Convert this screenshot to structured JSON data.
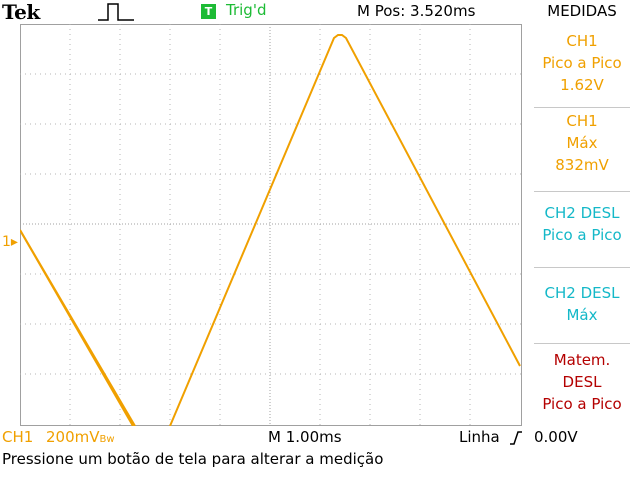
{
  "header": {
    "brand": "Tek",
    "trigger_badge": "T",
    "trigger_status": "Trig'd",
    "horizontal_position": "M Pos: 3.520ms",
    "measure_title": "MEDIDAS"
  },
  "screen": {
    "channel_marker": "1▸"
  },
  "measurements": [
    {
      "line1": "CH1",
      "line2": "Pico a Pico",
      "line3": "1.62V",
      "color": "#f0a000"
    },
    {
      "line1": "CH1",
      "line2": "Máx",
      "line3": "832mV",
      "color": "#f0a000"
    },
    {
      "line1": "CH2 DESL",
      "line2": "Pico a Pico",
      "color": "#14b8c8"
    },
    {
      "line1": "CH2 DESL",
      "line2": "Máx",
      "color": "#14b8c8"
    },
    {
      "line1": "Matem.",
      "line2": "DESL",
      "line3": "Pico a Pico",
      "color": "#b40000"
    }
  ],
  "footer": {
    "channel": "CH1",
    "volts_per_div": "200mV",
    "bandwidth_limit": "Bw",
    "time_per_div": "M 1.00ms",
    "trigger_source": "Linha",
    "trigger_level": "0.00V",
    "status_message": "Pressione um botão de tela para alterar a medição"
  },
  "colors": {
    "ch1": "#f0a000",
    "ch2": "#14b8c8",
    "math": "#b40000",
    "trig": "#1dbb35"
  }
}
